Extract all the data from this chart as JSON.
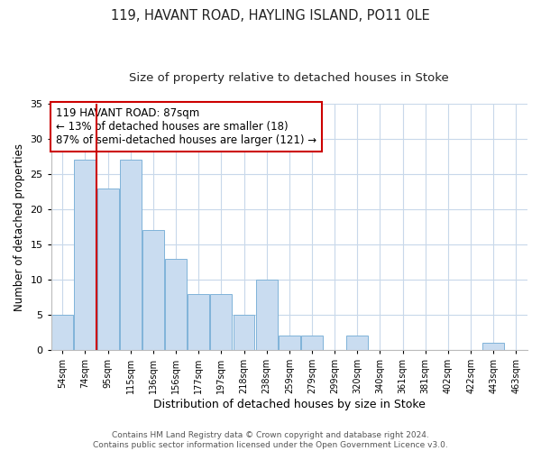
{
  "title1": "119, HAVANT ROAD, HAYLING ISLAND, PO11 0LE",
  "title2": "Size of property relative to detached houses in Stoke",
  "xlabel": "Distribution of detached houses by size in Stoke",
  "ylabel": "Number of detached properties",
  "categories": [
    "54sqm",
    "74sqm",
    "95sqm",
    "115sqm",
    "136sqm",
    "156sqm",
    "177sqm",
    "197sqm",
    "218sqm",
    "238sqm",
    "259sqm",
    "279sqm",
    "299sqm",
    "320sqm",
    "340sqm",
    "361sqm",
    "381sqm",
    "402sqm",
    "422sqm",
    "443sqm",
    "463sqm"
  ],
  "values": [
    5,
    27,
    23,
    27,
    17,
    13,
    8,
    8,
    5,
    10,
    2,
    2,
    0,
    2,
    0,
    0,
    0,
    0,
    0,
    1,
    0
  ],
  "bar_color": "#c9dcf0",
  "bar_edge_color": "#7fb3d9",
  "vline_x": 1.5,
  "vline_color": "#cc0000",
  "annotation_text": "119 HAVANT ROAD: 87sqm\n← 13% of detached houses are smaller (18)\n87% of semi-detached houses are larger (121) →",
  "annotation_box_color": "#ffffff",
  "annotation_box_edge": "#cc0000",
  "ylim": [
    0,
    35
  ],
  "yticks": [
    0,
    5,
    10,
    15,
    20,
    25,
    30,
    35
  ],
  "background_color": "#ffffff",
  "grid_color": "#c8d8ea",
  "footer": "Contains HM Land Registry data © Crown copyright and database right 2024.\nContains public sector information licensed under the Open Government Licence v3.0.",
  "title1_fontsize": 10.5,
  "title2_fontsize": 9.5,
  "xlabel_fontsize": 9,
  "ylabel_fontsize": 8.5,
  "annotation_fontsize": 8.5,
  "footer_fontsize": 6.5,
  "tick_fontsize": 8,
  "xtick_fontsize": 7
}
